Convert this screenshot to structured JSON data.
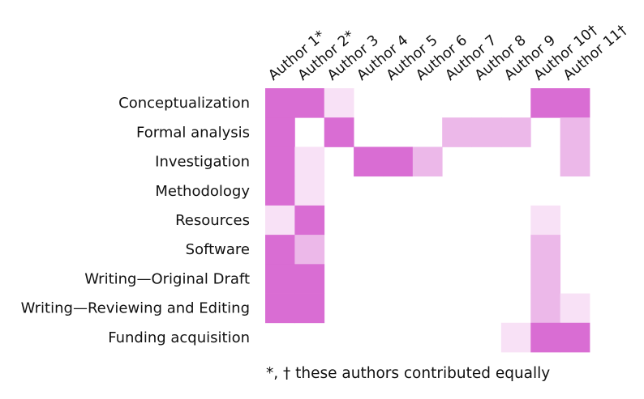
{
  "chart_data": {
    "type": "heatmap",
    "title": "",
    "columns": [
      "Author 1*",
      "Author 2*",
      "Author 3",
      "Author 4",
      "Author 5",
      "Author 6",
      "Author 7",
      "Author 8",
      "Author 9",
      "Author 10†",
      "Author 11†"
    ],
    "rows": [
      "Conceptualization",
      "Formal analysis",
      "Investigation",
      "Methodology",
      "Resources",
      "Software",
      "Writing—Original Draft",
      "Writing—Reviewing and Editing",
      "Funding acquisition"
    ],
    "levels_note": "0 = none, 1 = supporting (light), 2 = equal (medium), 3 = lead (dark)",
    "values": [
      [
        3,
        3,
        1,
        0,
        0,
        0,
        0,
        0,
        0,
        3,
        3
      ],
      [
        3,
        0,
        3,
        0,
        0,
        0,
        2,
        2,
        2,
        0,
        2
      ],
      [
        3,
        1,
        0,
        3,
        3,
        2,
        0,
        0,
        0,
        0,
        2
      ],
      [
        3,
        1,
        0,
        0,
        0,
        0,
        0,
        0,
        0,
        0,
        0
      ],
      [
        1,
        3,
        0,
        0,
        0,
        0,
        0,
        0,
        0,
        1,
        0
      ],
      [
        3,
        2,
        0,
        0,
        0,
        0,
        0,
        0,
        0,
        2,
        0
      ],
      [
        3,
        3,
        0,
        0,
        0,
        0,
        0,
        0,
        0,
        2,
        0
      ],
      [
        3,
        3,
        0,
        0,
        0,
        0,
        0,
        0,
        0,
        2,
        1
      ],
      [
        0,
        0,
        0,
        0,
        0,
        0,
        0,
        0,
        1,
        3,
        3
      ]
    ],
    "colors": {
      "0": "#ffffff",
      "1": "#f8e1f6",
      "2": "#ecb8e9",
      "3": "#d96dd3"
    },
    "footnote": "*, † these authors contributed equally"
  }
}
